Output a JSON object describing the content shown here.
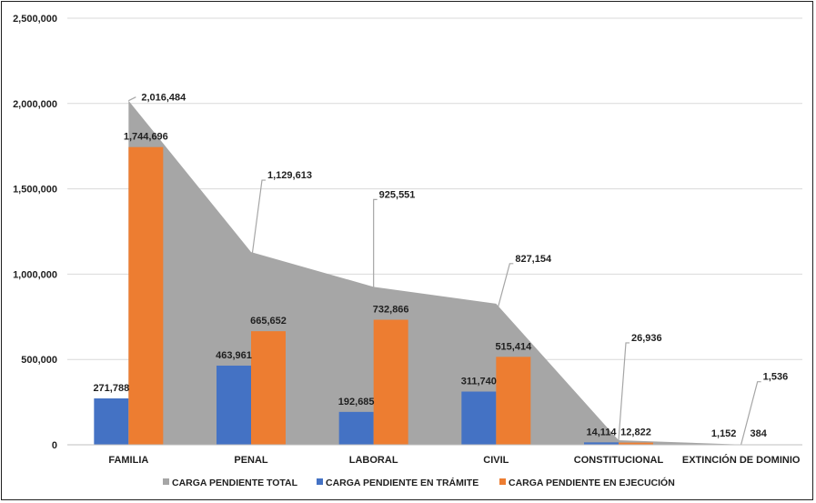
{
  "chart_data": {
    "type": "bar",
    "categories": [
      "FAMILIA",
      "PENAL",
      "LABORAL",
      "CIVIL",
      "CONSTITUCIONAL",
      "EXTINCIÓN DE DOMINIO"
    ],
    "area_series": {
      "name": "CARGA PENDIENTE TOTAL",
      "values": [
        2016484,
        1129613,
        925551,
        827154,
        26936,
        1536
      ],
      "labels": [
        "2,016,484",
        "1,129,613",
        "925,551",
        "827,154",
        "26,936",
        "1,536"
      ],
      "color": "#a6a6a6"
    },
    "series": [
      {
        "name": "CARGA PENDIENTE EN TRÁMITE",
        "values": [
          271788,
          463961,
          192685,
          311740,
          14114,
          1152
        ],
        "labels": [
          "271,788",
          "463,961",
          "192,685",
          "311,740",
          "14,114",
          "1,152"
        ],
        "color": "#4472c4"
      },
      {
        "name": "CARGA PENDIENTE EN EJECUCIÓN",
        "values": [
          1744696,
          665652,
          732866,
          515414,
          12822,
          384
        ],
        "labels": [
          "1,744,696",
          "665,652",
          "732,866",
          "515,414",
          "12,822",
          "384"
        ],
        "color": "#ed7d31"
      }
    ],
    "ylim": [
      0,
      2500000
    ],
    "yticks": [
      0,
      500000,
      1000000,
      1500000,
      2000000,
      2500000
    ],
    "ytick_labels": [
      "0",
      "500,000",
      "1,000,000",
      "1,500,000",
      "2,000,000",
      "2,500,000"
    ],
    "grid": true,
    "legend_position": "bottom"
  }
}
